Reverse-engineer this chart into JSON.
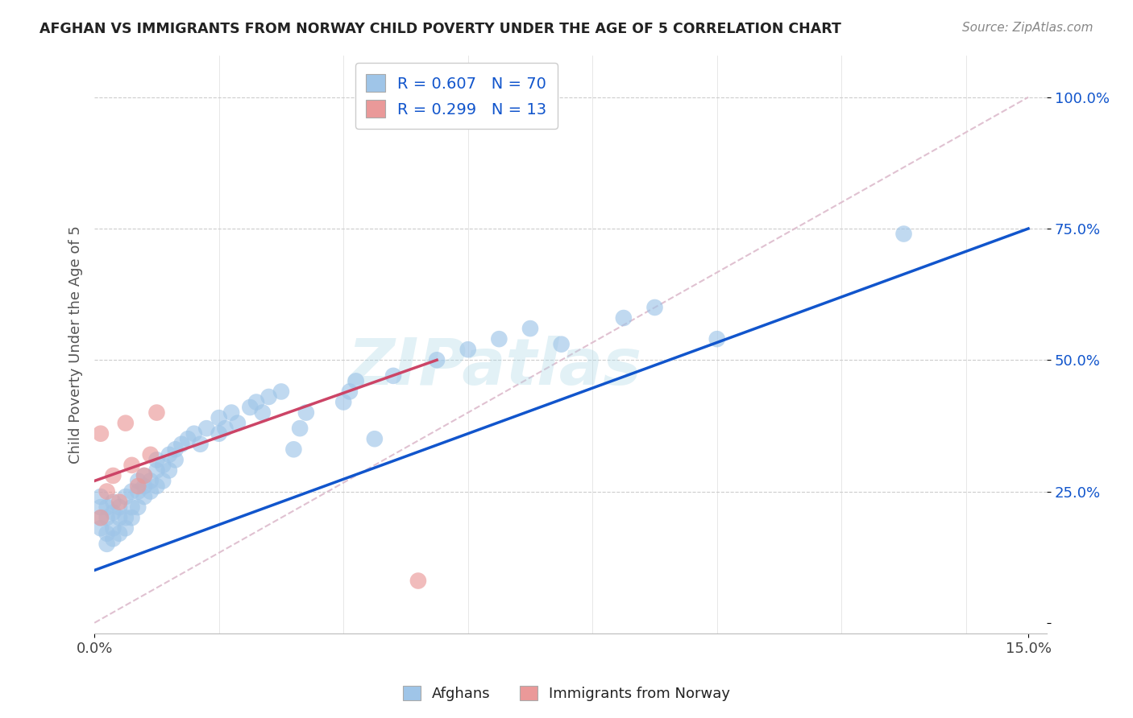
{
  "title": "AFGHAN VS IMMIGRANTS FROM NORWAY CHILD POVERTY UNDER THE AGE OF 5 CORRELATION CHART",
  "source": "Source: ZipAtlas.com",
  "ylabel": "Child Poverty Under the Age of 5",
  "blue_color": "#9fc5e8",
  "pink_color": "#ea9999",
  "blue_line_color": "#1155cc",
  "pink_line_color": "#cc4466",
  "ref_line_color": "#ddbbcc",
  "watermark_text": "ZIPatlas",
  "legend_line1": "R = 0.607   N = 70",
  "legend_line2": "R = 0.299   N = 13",
  "legend_label_color": "#1155cc",
  "afghans_x": [
    0.001,
    0.001,
    0.001,
    0.001,
    0.002,
    0.002,
    0.002,
    0.002,
    0.003,
    0.003,
    0.003,
    0.003,
    0.004,
    0.004,
    0.004,
    0.005,
    0.005,
    0.005,
    0.006,
    0.006,
    0.006,
    0.007,
    0.007,
    0.007,
    0.008,
    0.008,
    0.008,
    0.009,
    0.009,
    0.01,
    0.01,
    0.01,
    0.011,
    0.011,
    0.012,
    0.012,
    0.013,
    0.013,
    0.014,
    0.015,
    0.016,
    0.017,
    0.018,
    0.02,
    0.02,
    0.021,
    0.022,
    0.023,
    0.025,
    0.026,
    0.027,
    0.028,
    0.03,
    0.032,
    0.033,
    0.034,
    0.04,
    0.041,
    0.042,
    0.045,
    0.048,
    0.055,
    0.06,
    0.065,
    0.07,
    0.075,
    0.085,
    0.09,
    0.1,
    0.13
  ],
  "afghans_y": [
    0.18,
    0.2,
    0.22,
    0.24,
    0.15,
    0.17,
    0.2,
    0.22,
    0.16,
    0.18,
    0.21,
    0.23,
    0.17,
    0.2,
    0.22,
    0.18,
    0.2,
    0.24,
    0.2,
    0.22,
    0.25,
    0.22,
    0.25,
    0.27,
    0.24,
    0.26,
    0.28,
    0.25,
    0.27,
    0.26,
    0.29,
    0.31,
    0.27,
    0.3,
    0.29,
    0.32,
    0.31,
    0.33,
    0.34,
    0.35,
    0.36,
    0.34,
    0.37,
    0.36,
    0.39,
    0.37,
    0.4,
    0.38,
    0.41,
    0.42,
    0.4,
    0.43,
    0.44,
    0.33,
    0.37,
    0.4,
    0.42,
    0.44,
    0.46,
    0.35,
    0.47,
    0.5,
    0.52,
    0.54,
    0.56,
    0.53,
    0.58,
    0.6,
    0.54,
    0.74
  ],
  "norway_x": [
    0.001,
    0.001,
    0.002,
    0.003,
    0.004,
    0.005,
    0.006,
    0.007,
    0.008,
    0.009,
    0.01,
    0.052,
    0.055
  ],
  "norway_y": [
    0.2,
    0.36,
    0.25,
    0.28,
    0.23,
    0.38,
    0.3,
    0.26,
    0.28,
    0.32,
    0.4,
    0.08,
    0.97
  ],
  "blue_line": [
    0.0,
    0.15,
    0.1,
    0.75
  ],
  "pink_line": [
    0.0,
    0.055,
    0.27,
    0.5
  ],
  "ref_line": [
    0.0,
    0.15,
    0.0,
    1.0
  ],
  "xlim": [
    0.0,
    0.153
  ],
  "ylim": [
    -0.02,
    1.08
  ],
  "xticks": [
    0.0,
    0.15
  ],
  "xticklabels": [
    "0.0%",
    "15.0%"
  ],
  "yticks": [
    0.0,
    0.25,
    0.5,
    0.75,
    1.0
  ],
  "yticklabels": [
    "",
    "25.0%",
    "50.0%",
    "75.0%",
    "100.0%"
  ]
}
